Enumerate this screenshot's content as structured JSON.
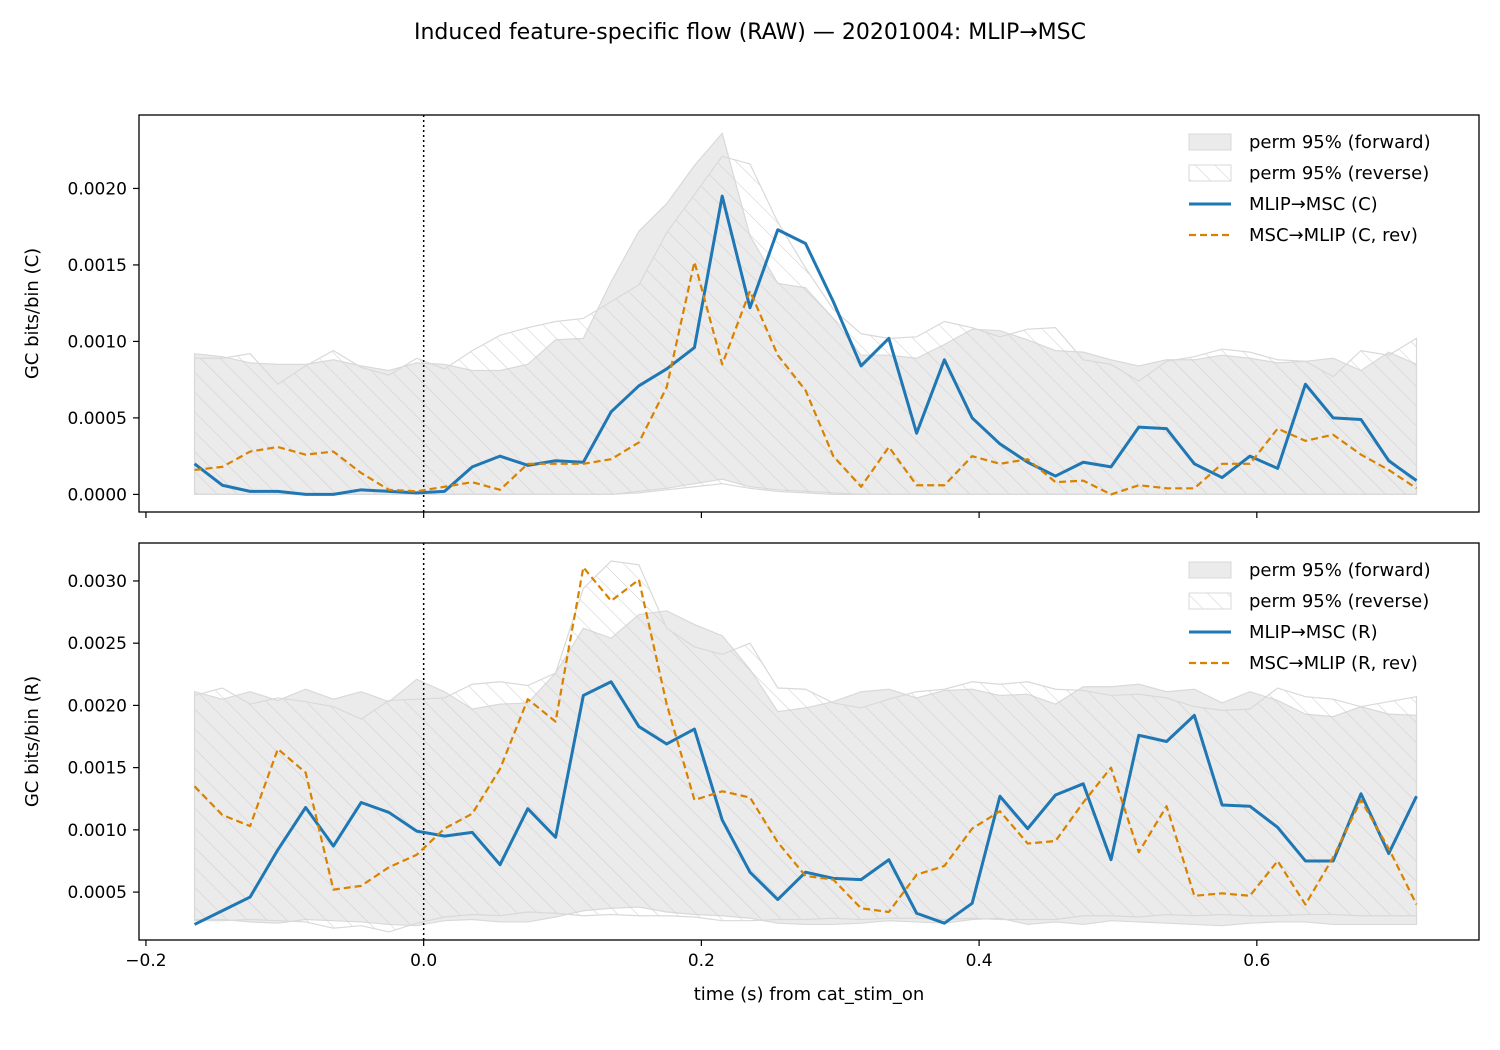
{
  "figure": {
    "title": "Induced feature-specific flow (RAW) — 20201004: MLIP→MSC",
    "xlabel": "time (s) from cat_stim_on"
  },
  "colors": {
    "forward": "#1f77b4",
    "reverse": "#d98200",
    "perm_fill": "#ebebeb",
    "perm_edge": "#d9d9d9",
    "hatch": "#cfcfcf"
  },
  "chart_data": [
    {
      "type": "line",
      "ylabel": "GC bits/bin (C)",
      "xlim": [
        -0.205,
        0.76
      ],
      "ylim": [
        -0.000115,
        0.00248
      ],
      "x_ticks": [
        -0.2,
        0.0,
        0.2,
        0.4,
        0.6
      ],
      "x_tick_labels": [
        "",
        "",
        "",
        "",
        ""
      ],
      "y_ticks": [
        0,
        0.0005,
        0.001,
        0.0015,
        0.002
      ],
      "y_tick_labels": [
        "0.0000",
        "0.0005",
        "0.0010",
        "0.0015",
        "0.0020"
      ],
      "vline_x": 0.0,
      "legend": [
        "perm 95% (forward)",
        "perm 95% (reverse)",
        "MLIP→MSC (C)",
        "MSC→MLIP (C, rev)"
      ],
      "x": [
        -0.165,
        -0.145,
        -0.125,
        -0.105,
        -0.085,
        -0.065,
        -0.045,
        -0.025,
        -0.005,
        0.015,
        0.035,
        0.055,
        0.075,
        0.095,
        0.115,
        0.135,
        0.155,
        0.175,
        0.195,
        0.215,
        0.235,
        0.255,
        0.275,
        0.295,
        0.315,
        0.335,
        0.355,
        0.375,
        0.395,
        0.415,
        0.435,
        0.455,
        0.475,
        0.495,
        0.515,
        0.535,
        0.555,
        0.575,
        0.595,
        0.615,
        0.635,
        0.655,
        0.675,
        0.695,
        0.715
      ],
      "series": [
        {
          "name": "MLIP→MSC (C)",
          "values": [
            0.0002,
            6e-05,
            2e-05,
            2e-05,
            0.0,
            0.0,
            3e-05,
            2e-05,
            1e-05,
            2e-05,
            0.00018,
            0.00025,
            0.00019,
            0.00022,
            0.00021,
            0.00054,
            0.00071,
            0.00082,
            0.00096,
            0.00195,
            0.00122,
            0.00173,
            0.00164,
            0.00126,
            0.00084,
            0.00102,
            0.0004,
            0.00088,
            0.0005,
            0.00033,
            0.00021,
            0.00012,
            0.00021,
            0.00018,
            0.00044,
            0.00043,
            0.0002,
            0.00011,
            0.00025,
            0.00017,
            0.00072,
            0.0005,
            0.00049,
            0.00022,
            9e-05
          ]
        },
        {
          "name": "MSC→MLIP (C, rev)",
          "values": [
            0.00016,
            0.00018,
            0.00028,
            0.00031,
            0.00026,
            0.00028,
            0.00014,
            3e-05,
            2e-05,
            5e-05,
            8e-05,
            3e-05,
            0.0002,
            0.0002,
            0.0002,
            0.00023,
            0.00034,
            0.0007,
            0.00152,
            0.00085,
            0.00133,
            0.00091,
            0.00068,
            0.00025,
            5e-05,
            0.00031,
            6e-05,
            6e-05,
            0.00025,
            0.0002,
            0.00023,
            8e-05,
            9e-05,
            0.0,
            6e-05,
            4e-05,
            4e-05,
            0.0002,
            0.0002,
            0.00043,
            0.00035,
            0.00039,
            0.00026,
            0.00016,
            4e-05
          ]
        }
      ],
      "perm_forward": {
        "low": [
          0,
          0,
          0,
          0,
          0,
          0,
          0,
          0,
          0,
          0,
          0,
          0,
          0,
          0,
          0,
          0,
          2e-05,
          4e-05,
          7e-05,
          0.0001,
          5e-05,
          3e-05,
          2e-05,
          1e-05,
          0,
          0,
          0,
          0,
          0,
          0,
          0,
          0,
          0,
          0,
          0,
          0,
          0,
          0,
          0,
          0,
          0,
          0,
          0,
          0,
          0
        ],
        "high": [
          0.00092,
          0.0009,
          0.00086,
          0.00085,
          0.00085,
          0.00088,
          0.00084,
          0.00081,
          0.00086,
          0.00085,
          0.00081,
          0.00081,
          0.00085,
          0.00101,
          0.00102,
          0.00139,
          0.00172,
          0.0019,
          0.00215,
          0.00236,
          0.00169,
          0.00138,
          0.00135,
          0.00115,
          0.00091,
          0.00091,
          0.00089,
          0.00098,
          0.00108,
          0.00107,
          0.00101,
          0.00094,
          0.00093,
          0.00088,
          0.00084,
          0.00088,
          0.00088,
          0.00091,
          0.00089,
          0.00086,
          0.00087,
          0.00089,
          0.00081,
          0.00093,
          0.00085
        ]
      },
      "perm_reverse": {
        "low": [
          0,
          0,
          0,
          0,
          0,
          0,
          0,
          0,
          0,
          0,
          0,
          0,
          0,
          0,
          0,
          0,
          1e-05,
          3e-05,
          5e-05,
          7e-05,
          4e-05,
          2e-05,
          1e-05,
          0,
          0,
          0,
          0,
          0,
          0,
          0,
          0,
          0,
          0,
          0,
          0,
          0,
          0,
          0,
          0,
          0,
          0,
          0,
          0,
          0,
          0
        ],
        "high": [
          0.00089,
          0.00089,
          0.00092,
          0.00072,
          0.00084,
          0.00094,
          0.00083,
          0.00078,
          0.00089,
          0.00082,
          0.00094,
          0.00104,
          0.00109,
          0.00113,
          0.00115,
          0.00126,
          0.00137,
          0.00171,
          0.00196,
          0.00221,
          0.00216,
          0.00178,
          0.00148,
          0.00121,
          0.00105,
          0.00102,
          0.00103,
          0.00113,
          0.00109,
          0.00103,
          0.00108,
          0.00109,
          0.00088,
          0.00085,
          0.00074,
          0.00087,
          0.0009,
          0.00095,
          0.00093,
          0.00088,
          0.00087,
          0.00077,
          0.00094,
          0.00091,
          0.00102
        ]
      }
    },
    {
      "type": "line",
      "ylabel": "GC bits/bin (R)",
      "xlim": [
        -0.205,
        0.76
      ],
      "ylim": [
        0.000115,
        0.003305
      ],
      "x_ticks": [
        -0.2,
        0.0,
        0.2,
        0.4,
        0.6
      ],
      "x_tick_labels": [
        "−0.2",
        "0.0",
        "0.2",
        "0.4",
        "0.6"
      ],
      "y_ticks": [
        0.0005,
        0.001,
        0.0015,
        0.002,
        0.0025,
        0.003
      ],
      "y_tick_labels": [
        "0.0005",
        "0.0010",
        "0.0015",
        "0.0020",
        "0.0025",
        "0.0030"
      ],
      "vline_x": 0.0,
      "legend": [
        "perm 95% (forward)",
        "perm 95% (reverse)",
        "MLIP→MSC (R)",
        "MSC→MLIP (R, rev)"
      ],
      "x": [
        -0.165,
        -0.145,
        -0.125,
        -0.105,
        -0.085,
        -0.065,
        -0.045,
        -0.025,
        -0.005,
        0.015,
        0.035,
        0.055,
        0.075,
        0.095,
        0.115,
        0.135,
        0.155,
        0.175,
        0.195,
        0.215,
        0.235,
        0.255,
        0.275,
        0.295,
        0.315,
        0.335,
        0.355,
        0.375,
        0.395,
        0.415,
        0.435,
        0.455,
        0.475,
        0.495,
        0.515,
        0.535,
        0.555,
        0.575,
        0.595,
        0.615,
        0.635,
        0.655,
        0.675,
        0.695,
        0.715
      ],
      "series": [
        {
          "name": "MLIP→MSC (R)",
          "values": [
            0.00024,
            0.00035,
            0.00046,
            0.00084,
            0.00118,
            0.00087,
            0.00122,
            0.00114,
            0.00099,
            0.00095,
            0.00098,
            0.00072,
            0.00117,
            0.00094,
            0.00208,
            0.00219,
            0.00183,
            0.00169,
            0.00181,
            0.00108,
            0.00066,
            0.00044,
            0.00066,
            0.00061,
            0.0006,
            0.00076,
            0.00033,
            0.00025,
            0.00041,
            0.00127,
            0.00101,
            0.00128,
            0.00137,
            0.00076,
            0.00176,
            0.00171,
            0.00192,
            0.0012,
            0.00119,
            0.00102,
            0.00075,
            0.00075,
            0.00129,
            0.00081,
            0.00127
          ]
        },
        {
          "name": "MSC→MLIP (R, rev)",
          "values": [
            0.00135,
            0.00112,
            0.00103,
            0.00165,
            0.00146,
            0.00052,
            0.00055,
            0.0007,
            0.0008,
            0.00101,
            0.00113,
            0.00149,
            0.00205,
            0.00187,
            0.00311,
            0.00284,
            0.00301,
            0.00201,
            0.00124,
            0.00131,
            0.00126,
            0.0009,
            0.00063,
            0.0006,
            0.00037,
            0.00034,
            0.00064,
            0.00071,
            0.00101,
            0.00115,
            0.00089,
            0.00091,
            0.00122,
            0.0015,
            0.00082,
            0.00119,
            0.00047,
            0.00049,
            0.00047,
            0.00075,
            0.0004,
            0.00078,
            0.00124,
            0.00085,
            0.0004
          ]
        }
      ],
      "perm_forward": {
        "low": [
          0.00028,
          0.00028,
          0.00026,
          0.00025,
          0.00028,
          0.00027,
          0.00026,
          0.00024,
          0.00023,
          0.00027,
          0.00028,
          0.00026,
          0.00026,
          0.0003,
          0.00035,
          0.00037,
          0.00038,
          0.00034,
          0.00032,
          0.00031,
          0.00029,
          0.00025,
          0.00024,
          0.00024,
          0.00025,
          0.00027,
          0.00026,
          0.00025,
          0.00028,
          0.00029,
          0.00024,
          0.00026,
          0.00024,
          0.00027,
          0.00026,
          0.00025,
          0.00024,
          0.00023,
          0.00025,
          0.00026,
          0.00026,
          0.00024,
          0.00024,
          0.00024,
          0.00024
        ],
        "high": [
          0.00211,
          0.00205,
          0.00211,
          0.00204,
          0.00213,
          0.00205,
          0.00211,
          0.00203,
          0.00221,
          0.00211,
          0.00197,
          0.00201,
          0.00202,
          0.00226,
          0.00262,
          0.00254,
          0.00273,
          0.00276,
          0.00265,
          0.00256,
          0.00229,
          0.00195,
          0.00198,
          0.00203,
          0.00211,
          0.00213,
          0.00206,
          0.00212,
          0.00213,
          0.00208,
          0.00209,
          0.00201,
          0.00215,
          0.00215,
          0.00217,
          0.00211,
          0.00213,
          0.00202,
          0.00211,
          0.00204,
          0.00193,
          0.00191,
          0.00199,
          0.00193,
          0.00192
        ]
      },
      "perm_reverse": {
        "low": [
          0.00027,
          0.00027,
          0.00028,
          0.00027,
          0.00026,
          0.00021,
          0.00023,
          0.00018,
          0.00025,
          0.0003,
          0.00032,
          0.00031,
          0.00034,
          0.00033,
          0.00031,
          0.00032,
          0.00031,
          0.00031,
          0.0003,
          0.00027,
          0.00027,
          0.00028,
          0.00028,
          0.00029,
          0.00028,
          0.00029,
          0.00029,
          0.00028,
          0.00029,
          0.00028,
          0.00028,
          0.00028,
          0.00031,
          0.00031,
          0.0003,
          0.00032,
          0.00031,
          0.00032,
          0.00031,
          0.00031,
          0.00032,
          0.00032,
          0.00031,
          0.00031,
          0.00031
        ],
        "high": [
          0.00208,
          0.00214,
          0.00201,
          0.00206,
          0.00203,
          0.00199,
          0.00189,
          0.00204,
          0.00205,
          0.00206,
          0.00217,
          0.00219,
          0.00216,
          0.00226,
          0.00294,
          0.00316,
          0.00313,
          0.00262,
          0.00247,
          0.00241,
          0.0025,
          0.00214,
          0.00213,
          0.00202,
          0.00198,
          0.00205,
          0.00211,
          0.00213,
          0.00219,
          0.00217,
          0.00219,
          0.00213,
          0.00212,
          0.00208,
          0.00209,
          0.00206,
          0.00199,
          0.00196,
          0.00197,
          0.00214,
          0.00207,
          0.00205,
          0.00199,
          0.00203,
          0.00207
        ]
      }
    }
  ]
}
